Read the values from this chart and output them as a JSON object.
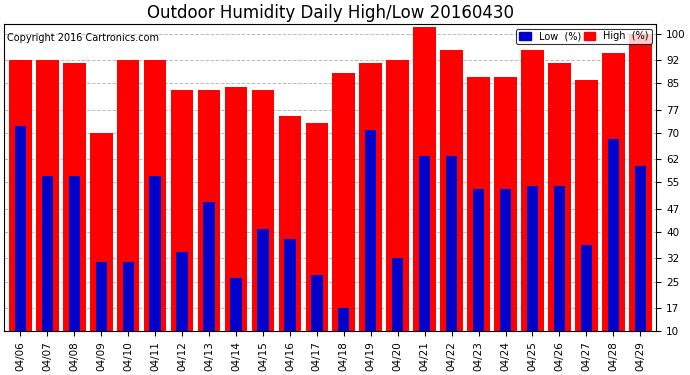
{
  "title": "Outdoor Humidity Daily High/Low 20160430",
  "copyright": "Copyright 2016 Cartronics.com",
  "dates": [
    "04/06",
    "04/07",
    "04/08",
    "04/09",
    "04/10",
    "04/11",
    "04/12",
    "04/13",
    "04/14",
    "04/15",
    "04/16",
    "04/17",
    "04/18",
    "04/19",
    "04/20",
    "04/21",
    "04/22",
    "04/23",
    "04/24",
    "04/25",
    "04/26",
    "04/27",
    "04/28",
    "04/29"
  ],
  "high": [
    92,
    92,
    91,
    70,
    92,
    92,
    83,
    83,
    84,
    83,
    75,
    73,
    88,
    91,
    92,
    102,
    95,
    87,
    87,
    95,
    91,
    86,
    94,
    100
  ],
  "low": [
    72,
    57,
    57,
    31,
    31,
    57,
    34,
    49,
    26,
    41,
    38,
    27,
    17,
    71,
    32,
    63,
    63,
    53,
    53,
    54,
    54,
    36,
    68,
    60
  ],
  "high_color": "#ff0000",
  "low_color": "#0000cc",
  "background_color": "#ffffff",
  "grid_color": "#bbbbbb",
  "yticks": [
    10,
    17,
    25,
    32,
    40,
    47,
    55,
    62,
    70,
    77,
    85,
    92,
    100
  ],
  "ymin": 10,
  "ymax": 103,
  "bar_width": 0.42,
  "title_fontsize": 12,
  "tick_fontsize": 7.5,
  "label_fontsize": 7,
  "legend_low_label": "Low  (%)",
  "legend_high_label": "High  (%)"
}
